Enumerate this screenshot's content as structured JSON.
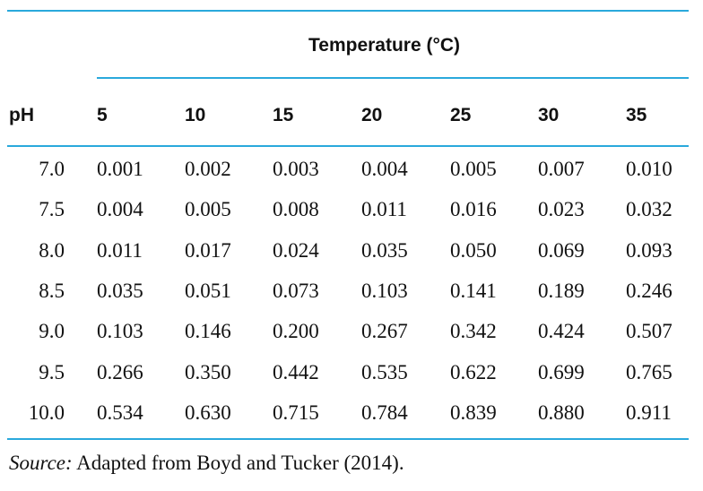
{
  "table": {
    "group_header": "Temperature (°C)",
    "row_header": "pH",
    "columns": [
      "5",
      "10",
      "15",
      "20",
      "25",
      "30",
      "35"
    ],
    "rows": [
      {
        "ph": "7.0",
        "values": [
          "0.001",
          "0.002",
          "0.003",
          "0.004",
          "0.005",
          "0.007",
          "0.010"
        ]
      },
      {
        "ph": "7.5",
        "values": [
          "0.004",
          "0.005",
          "0.008",
          "0.011",
          "0.016",
          "0.023",
          "0.032"
        ]
      },
      {
        "ph": "8.0",
        "values": [
          "0.011",
          "0.017",
          "0.024",
          "0.035",
          "0.050",
          "0.069",
          "0.093"
        ]
      },
      {
        "ph": "8.5",
        "values": [
          "0.035",
          "0.051",
          "0.073",
          "0.103",
          "0.141",
          "0.189",
          "0.246"
        ]
      },
      {
        "ph": "9.0",
        "values": [
          "0.103",
          "0.146",
          "0.200",
          "0.267",
          "0.342",
          "0.424",
          "0.507"
        ]
      },
      {
        "ph": "9.5",
        "values": [
          "0.266",
          "0.350",
          "0.442",
          "0.535",
          "0.622",
          "0.699",
          "0.765"
        ]
      },
      {
        "ph": "10.0",
        "values": [
          "0.534",
          "0.630",
          "0.715",
          "0.784",
          "0.839",
          "0.880",
          "0.911"
        ]
      }
    ]
  },
  "footnote": {
    "label": "Source:",
    "text": " Adapted from Boyd and Tucker (2014)."
  },
  "colors": {
    "rule": "#2aa9dc",
    "text": "#111111"
  }
}
